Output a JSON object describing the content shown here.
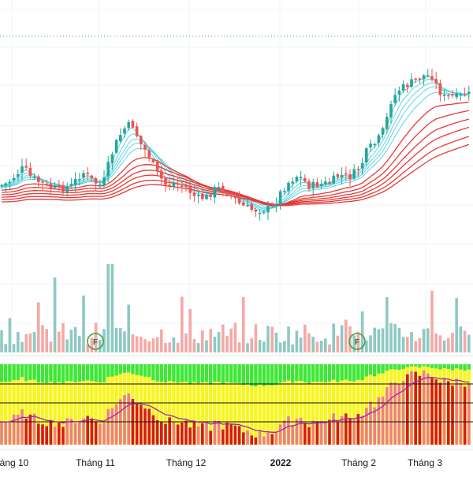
{
  "chart_data": {
    "type": "candlestick",
    "x_ticks": [
      "áng 10",
      "Tháng 11",
      "Tháng 12",
      "2022",
      "Tháng 2",
      "Tháng 3"
    ],
    "x_tick_bold": [
      false,
      false,
      false,
      true,
      false,
      false
    ],
    "volume_markers": [
      "F",
      "F"
    ],
    "colors": {
      "up": "#26a69a",
      "down": "#ef5350",
      "vol_up": "#8ec9c3",
      "vol_down": "#f4a9a6",
      "ma_fast": "#4dd0e1",
      "ma_slow": "#e53935",
      "osc_bg_yellow": "#f7f520",
      "osc_bg_green": "#3ee63e",
      "osc_bar_red": "#d81b1b",
      "osc_bar_pink": "#f08080",
      "osc_line": "#9c27b0",
      "marker": "#43a047"
    },
    "grid": true
  }
}
